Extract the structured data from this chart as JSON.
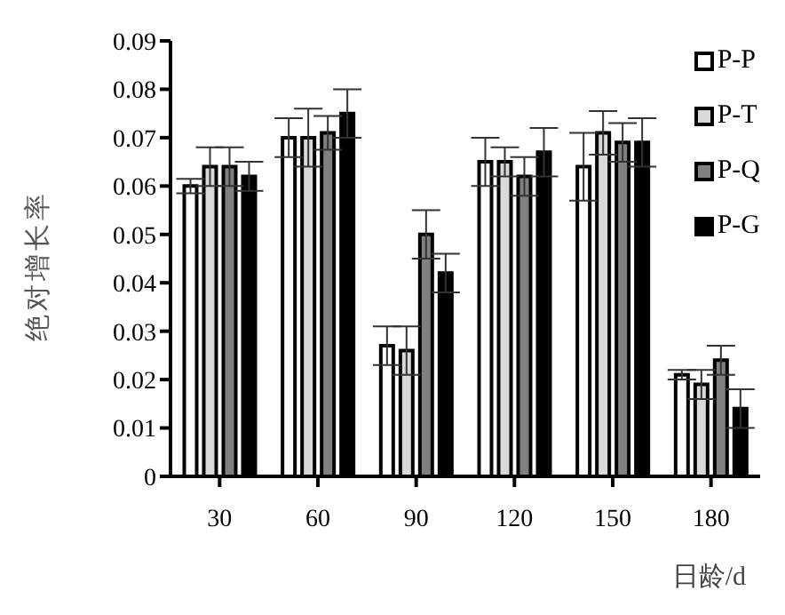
{
  "chart_data": {
    "type": "bar",
    "xlabel": "日龄/d",
    "ylabel": "绝对增长率",
    "categories": [
      "30",
      "60",
      "90",
      "120",
      "150",
      "180"
    ],
    "series": [
      {
        "name": "P-P",
        "color": "#ffffff",
        "values": [
          0.06,
          0.07,
          0.027,
          0.065,
          0.064,
          0.021
        ],
        "errors": [
          0.0015,
          0.004,
          0.004,
          0.005,
          0.007,
          0.001
        ]
      },
      {
        "name": "P-T",
        "color": "#d9d9d9",
        "values": [
          0.064,
          0.07,
          0.026,
          0.065,
          0.071,
          0.019
        ],
        "errors": [
          0.004,
          0.006,
          0.005,
          0.003,
          0.0045,
          0.003
        ]
      },
      {
        "name": "P-Q",
        "color": "#808080",
        "values": [
          0.064,
          0.071,
          0.05,
          0.062,
          0.069,
          0.024
        ],
        "errors": [
          0.004,
          0.0035,
          0.005,
          0.004,
          0.004,
          0.003
        ]
      },
      {
        "name": "P-G",
        "color": "#000000",
        "values": [
          0.062,
          0.075,
          0.042,
          0.067,
          0.069,
          0.014
        ],
        "errors": [
          0.003,
          0.005,
          0.004,
          0.005,
          0.005,
          0.004
        ]
      }
    ],
    "ylim": [
      0,
      0.09
    ],
    "yticks": [
      0,
      0.01,
      0.02,
      0.03,
      0.04,
      0.05,
      0.06,
      0.07,
      0.08,
      0.09
    ],
    "grid": false,
    "legend": "top right"
  }
}
